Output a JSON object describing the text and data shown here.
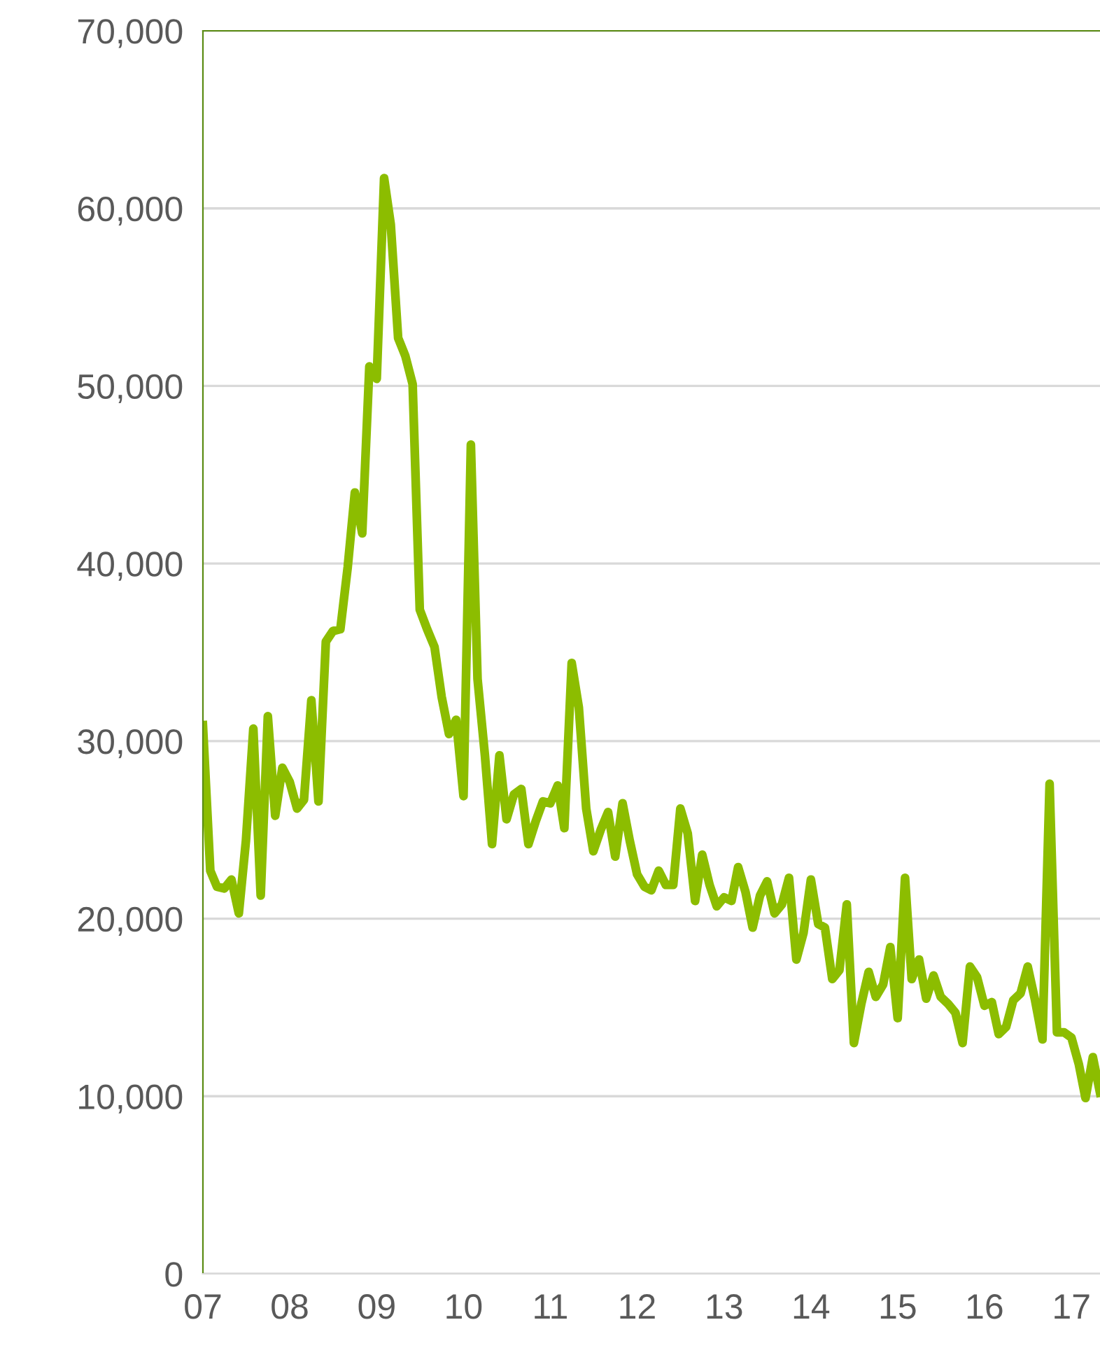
{
  "chart_data": {
    "type": "line",
    "x": [
      "2007-01",
      "2007-02",
      "2007-03",
      "2007-04",
      "2007-05",
      "2007-06",
      "2007-07",
      "2007-08",
      "2007-09",
      "2007-10",
      "2007-11",
      "2007-12",
      "2008-01",
      "2008-02",
      "2008-03",
      "2008-04",
      "2008-05",
      "2008-06",
      "2008-07",
      "2008-08",
      "2008-09",
      "2008-10",
      "2008-11",
      "2008-12",
      "2009-01",
      "2009-02",
      "2009-03",
      "2009-04",
      "2009-05",
      "2009-06",
      "2009-07",
      "2009-08",
      "2009-09",
      "2009-10",
      "2009-11",
      "2009-12",
      "2010-01",
      "2010-02",
      "2010-03",
      "2010-04",
      "2010-05",
      "2010-06",
      "2010-07",
      "2010-08",
      "2010-09",
      "2010-10",
      "2010-11",
      "2010-12",
      "2011-01",
      "2011-02",
      "2011-03",
      "2011-04",
      "2011-05",
      "2011-06",
      "2011-07",
      "2011-08",
      "2011-09",
      "2011-10",
      "2011-11",
      "2011-12",
      "2012-01",
      "2012-02",
      "2012-03",
      "2012-04",
      "2012-05",
      "2012-06",
      "2012-07",
      "2012-08",
      "2012-09",
      "2012-10",
      "2012-11",
      "2012-12",
      "2013-01",
      "2013-02",
      "2013-03",
      "2013-04",
      "2013-05",
      "2013-06",
      "2013-07",
      "2013-08",
      "2013-09",
      "2013-10",
      "2013-11",
      "2013-12",
      "2014-01",
      "2014-02",
      "2014-03",
      "2014-04",
      "2014-05",
      "2014-06",
      "2014-07",
      "2014-08",
      "2014-09",
      "2014-10",
      "2014-11",
      "2014-12",
      "2015-01",
      "2015-02",
      "2015-03",
      "2015-04",
      "2015-05",
      "2015-06",
      "2015-07",
      "2015-08",
      "2015-09",
      "2015-10",
      "2015-11",
      "2015-12",
      "2016-01",
      "2016-02",
      "2016-03",
      "2016-04",
      "2016-05",
      "2016-06",
      "2016-07",
      "2016-08",
      "2016-09",
      "2016-10",
      "2016-11",
      "2016-12",
      "2017-01",
      "2017-02",
      "2017-03",
      "2017-04",
      "2017-05"
    ],
    "series": [
      {
        "color": "#8cbd00",
        "values": [
          30900,
          22700,
          21800,
          21700,
          22200,
          20300,
          24400,
          30700,
          21300,
          31400,
          25800,
          28500,
          27700,
          26200,
          26700,
          32300,
          26600,
          35600,
          36200,
          36300,
          39800,
          44000,
          41700,
          51100,
          50400,
          61700,
          59100,
          52700,
          51700,
          50100,
          37400,
          36300,
          35300,
          32500,
          30400,
          31200,
          26900,
          46700,
          33500,
          29200,
          24200,
          29200,
          25600,
          27000,
          27300,
          24200,
          25500,
          26600,
          26500,
          27500,
          25100,
          34400,
          31900,
          26200,
          23800,
          25000,
          26000,
          23500,
          26500,
          24400,
          22500,
          21800,
          21600,
          22700,
          21900,
          21900,
          26200,
          24800,
          21000,
          23600,
          21900,
          20700,
          21200,
          21000,
          22900,
          21500,
          19500,
          21300,
          22100,
          20300,
          20800,
          22300,
          17700,
          19200,
          22200,
          19700,
          19500,
          16600,
          17100,
          20800,
          13000,
          15200,
          17000,
          15600,
          16300,
          18400,
          14400,
          22300,
          16600,
          17700,
          15500,
          16800,
          15600,
          15200,
          14700,
          13000,
          17300,
          16700,
          15100,
          15300,
          13500,
          13900,
          15400,
          15800,
          17300,
          15400,
          13200,
          27600,
          13600,
          13600,
          13300,
          11800,
          9900,
          12200,
          10200
        ]
      }
    ],
    "xlim": [
      "2007-01",
      "2017-05"
    ],
    "xticks": [
      {
        "value": "2007-01",
        "label": "07"
      },
      {
        "value": "2008-01",
        "label": "08"
      },
      {
        "value": "2009-01",
        "label": "09"
      },
      {
        "value": "2010-01",
        "label": "10"
      },
      {
        "value": "2011-01",
        "label": "11"
      },
      {
        "value": "2012-01",
        "label": "12"
      },
      {
        "value": "2013-01",
        "label": "13"
      },
      {
        "value": "2014-01",
        "label": "14"
      },
      {
        "value": "2015-01",
        "label": "15"
      },
      {
        "value": "2016-01",
        "label": "16"
      },
      {
        "value": "2017-01",
        "label": "17"
      }
    ],
    "ylim": [
      0,
      70000
    ],
    "yticks": [
      0,
      {
        "value": 10000,
        "label": "10,000"
      },
      {
        "value": 20000,
        "label": "20,000"
      },
      {
        "value": 30000,
        "label": "30,000"
      },
      {
        "value": 40000,
        "label": "40,000"
      },
      {
        "value": 50000,
        "label": "50,000"
      },
      {
        "value": 60000,
        "label": "60,000"
      },
      {
        "value": 70000,
        "label": "70,000"
      }
    ],
    "grid": "y",
    "legend": false,
    "marker": "none",
    "line_style": "solid"
  }
}
